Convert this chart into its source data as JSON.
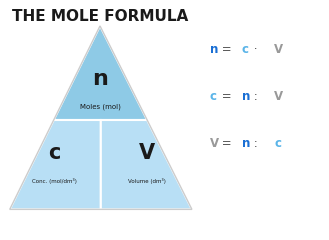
{
  "title": "THE MOLE FORMULA",
  "title_fontsize": 11,
  "title_color": "#1a1a1a",
  "bg_color": "#ffffff",
  "top_color": "#8ecae6",
  "bottom_color": "#b8dff5",
  "divider_color": "#ffffff",
  "n_label": "n",
  "n_sublabel": "Moles (mol)",
  "c_label": "c",
  "c_sublabel": "Conc. (mol/dm³)",
  "v_label": "V",
  "v_sublabel": "Volume (dm³)",
  "blue_dark": "#1a6fd4",
  "blue_light": "#5ab4e8",
  "gray": "#999999",
  "dark": "#1a1a1a",
  "eq_color": "#555555"
}
